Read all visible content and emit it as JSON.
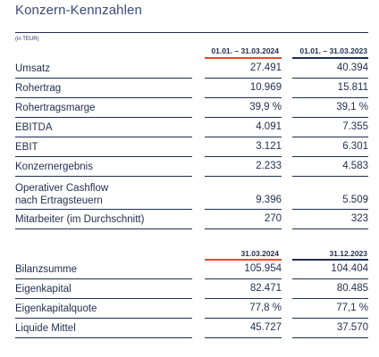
{
  "title": "Konzern-Kennzahlen",
  "unit_note": "(in TEUR)",
  "colors": {
    "current_period_accent": "#e8472f",
    "prior_period_accent": "#1f2d4e",
    "text": "#1f2d4e"
  },
  "section1": {
    "col1_header": "01.01. – 31.03.2024",
    "col2_header": "01.01. – 31.03.2023",
    "rows": [
      {
        "label": "Umsatz",
        "v1": "27.491",
        "v2": "40.394"
      },
      {
        "label": "Rohertrag",
        "v1": "10.969",
        "v2": "15.811"
      },
      {
        "label": "Rohertragsmarge",
        "v1": "39,9 %",
        "v2": "39,1 %"
      },
      {
        "label": "EBITDA",
        "v1": "4.091",
        "v2": "7.355"
      },
      {
        "label": "EBIT",
        "v1": "3.121",
        "v2": "6.301"
      },
      {
        "label": "Konzernergebnis",
        "v1": "2.233",
        "v2": "4.583"
      },
      {
        "label": "Operativer Cashflow",
        "label2": "nach Ertragsteuern",
        "v1": "9.396",
        "v2": "5.509"
      },
      {
        "label": "Mitarbeiter (im Durchschnitt)",
        "v1": "270",
        "v2": "323"
      }
    ]
  },
  "section2": {
    "col1_header": "31.03.2024",
    "col2_header": "31.12.2023",
    "rows": [
      {
        "label": "Bilanzsumme",
        "v1": "105.954",
        "v2": "104.404"
      },
      {
        "label": "Eigenkapital",
        "v1": "82.471",
        "v2": "80.485"
      },
      {
        "label": "Eigenkapitalquote",
        "v1": "77,8 %",
        "v2": "77,1 %"
      },
      {
        "label": "Liquide Mittel",
        "v1": "45.727",
        "v2": "37.570"
      }
    ]
  }
}
